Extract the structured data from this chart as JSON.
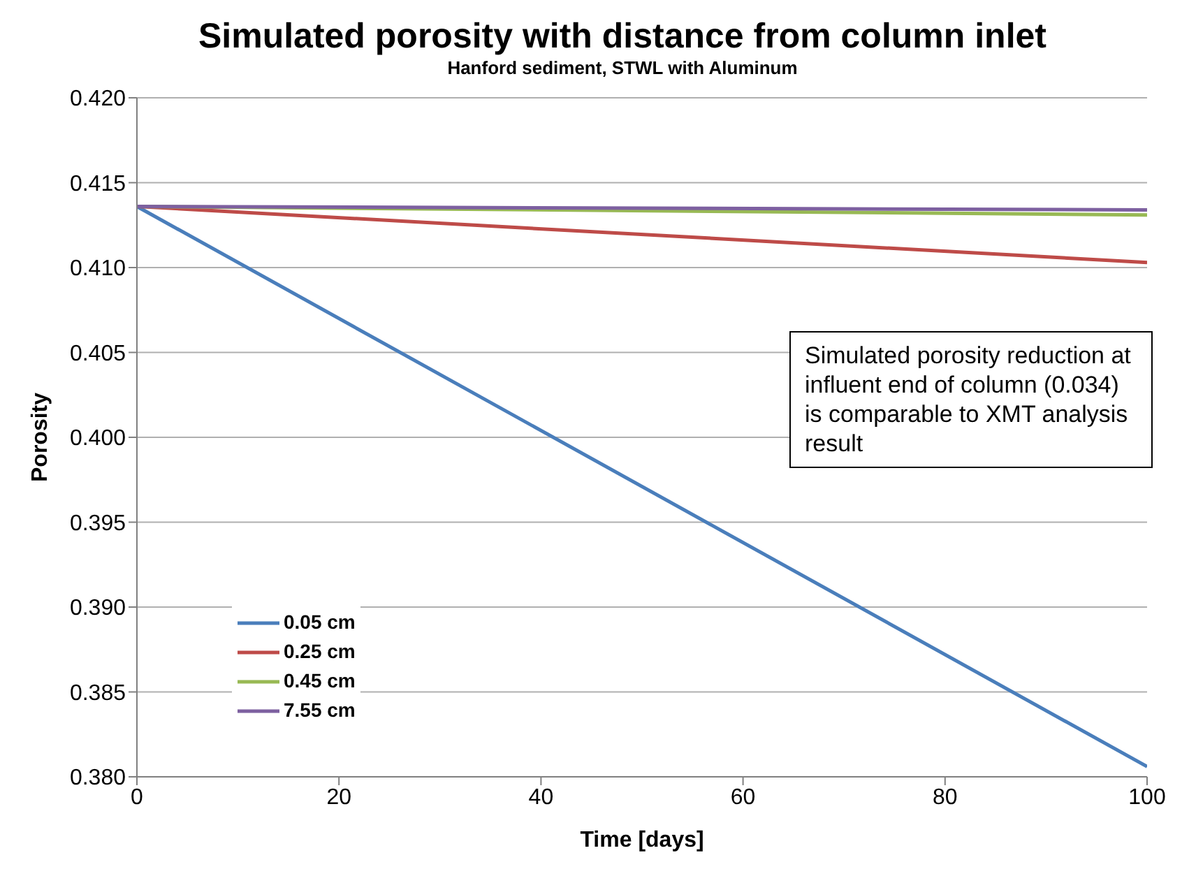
{
  "chart_data": {
    "type": "line",
    "title": "Simulated porosity with distance from column inlet",
    "subtitle": "Hanford sediment, STWL with Aluminum",
    "xlabel": "Time [days]",
    "ylabel": "Porosity",
    "x": [
      0,
      100
    ],
    "series": [
      {
        "name": "0.05 cm",
        "color": "#4a7ebb",
        "values": [
          0.4136,
          0.3806
        ]
      },
      {
        "name": "0.25 cm",
        "color": "#be4b48",
        "values": [
          0.4136,
          0.4103
        ]
      },
      {
        "name": "0.45 cm",
        "color": "#98b954",
        "values": [
          0.4136,
          0.4131
        ]
      },
      {
        "name": "7.55 cm",
        "color": "#7d60a0",
        "values": [
          0.4136,
          0.4134
        ]
      }
    ],
    "xlim": [
      0,
      100
    ],
    "xticks": [
      0,
      20,
      40,
      60,
      80,
      100
    ],
    "ylim": [
      0.38,
      0.42
    ],
    "yticks": [
      {
        "value": 0.38,
        "label": "0.380"
      },
      {
        "value": 0.385,
        "label": "0.385"
      },
      {
        "value": 0.39,
        "label": "0.390"
      },
      {
        "value": 0.395,
        "label": "0.395"
      },
      {
        "value": 0.4,
        "label": "0.400"
      },
      {
        "value": 0.405,
        "label": "0.405"
      },
      {
        "value": 0.41,
        "label": "0.410"
      },
      {
        "value": 0.415,
        "label": "0.415"
      },
      {
        "value": 0.42,
        "label": "0.420"
      }
    ],
    "grid": "y",
    "legend": "bottom left",
    "marker": "none",
    "line_style": "solid",
    "annotations": [
      "Simulated porosity reduction at influent end of column (0.034) is comparable to XMT analysis result"
    ]
  }
}
